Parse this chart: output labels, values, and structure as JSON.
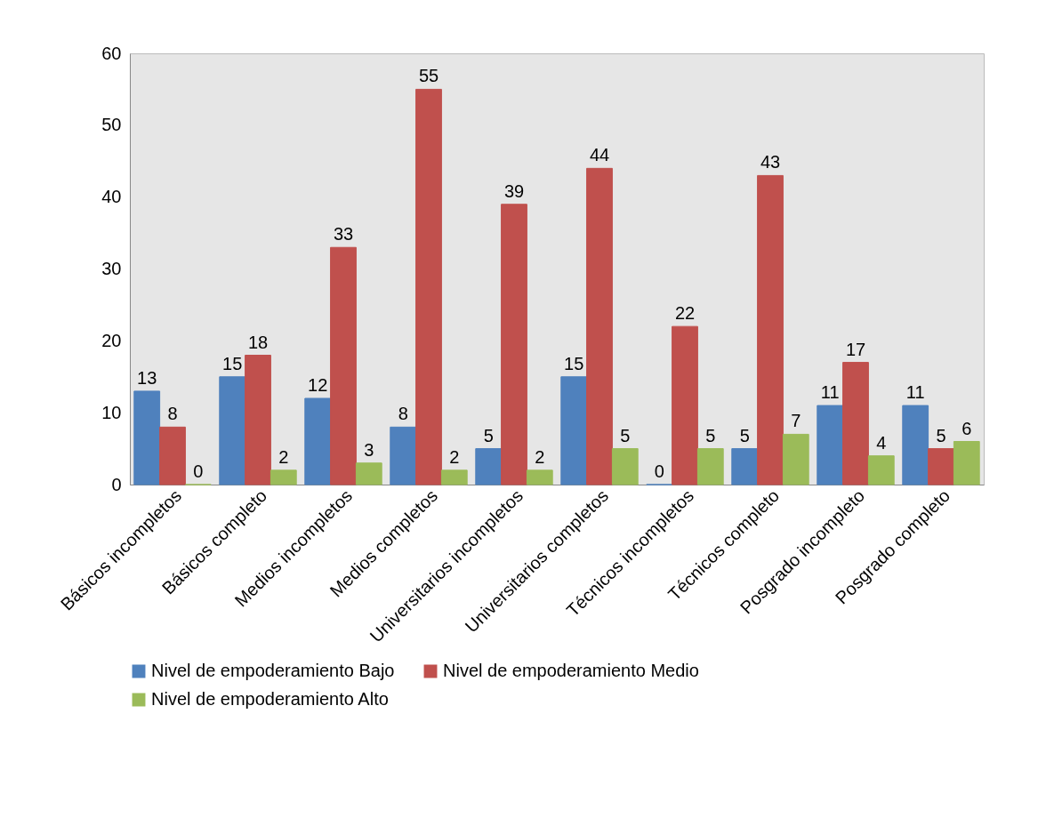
{
  "chart_data": {
    "type": "bar",
    "categories": [
      "Básicos  incompletos",
      "Básicos completo",
      "Medios incompletos",
      "Medios completos",
      "Universitarios incompletos",
      "Universitarios completos",
      "Técnicos incompletos",
      "Técnicos completo",
      "Posgrado incompleto",
      "Posgrado completo"
    ],
    "series": [
      {
        "name": "Nivel de empoderamiento Bajo",
        "color": "#4f81bd",
        "values": [
          13,
          15,
          12,
          8,
          5,
          15,
          0,
          5,
          11,
          11
        ]
      },
      {
        "name": "Nivel de empoderamiento Medio",
        "color": "#c0504d",
        "values": [
          8,
          18,
          33,
          55,
          39,
          44,
          22,
          43,
          17,
          5
        ]
      },
      {
        "name": "Nivel de empoderamiento Alto",
        "color": "#9bbb59",
        "values": [
          0,
          2,
          3,
          2,
          2,
          5,
          5,
          7,
          4,
          6
        ]
      }
    ],
    "ylim": [
      0,
      60
    ],
    "yticks": [
      0,
      10,
      20,
      30,
      40,
      50,
      60
    ],
    "grid": false,
    "legend": "bottom",
    "data_labels": true
  }
}
